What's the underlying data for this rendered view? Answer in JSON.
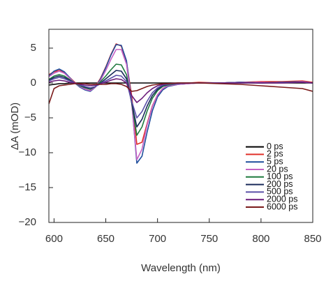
{
  "chart_data": {
    "type": "line",
    "xlabel": "Wavelength (nm)",
    "ylabel": "ΔA (mOD)",
    "x": [
      595,
      600,
      605,
      610,
      615,
      620,
      625,
      630,
      635,
      640,
      645,
      650,
      655,
      660,
      665,
      670,
      675,
      680,
      685,
      690,
      695,
      700,
      705,
      710,
      720,
      730,
      740,
      760,
      780,
      800,
      820,
      840,
      850
    ],
    "series": [
      {
        "name": "0 ps",
        "color": "#000000",
        "values": [
          -0.3,
          -0.2,
          -0.1,
          -0.1,
          0,
          0,
          0,
          0,
          0,
          0,
          0,
          0,
          0,
          0,
          0,
          0,
          0,
          0,
          0,
          0,
          0,
          0,
          0,
          0,
          0,
          0,
          0,
          0,
          0,
          0,
          0,
          0,
          0
        ]
      },
      {
        "name": "2 ps",
        "color": "#e0302a",
        "values": [
          1.2,
          1.6,
          1.8,
          1.5,
          0.8,
          0.1,
          -0.5,
          -0.9,
          -1.1,
          -0.5,
          0.7,
          2.3,
          4.1,
          5.6,
          5.3,
          3.0,
          -1.8,
          -8.8,
          -8.5,
          -5.8,
          -3.3,
          -1.7,
          -0.8,
          -0.4,
          -0.1,
          0,
          0.1,
          0,
          0.1,
          0.2,
          0.2,
          0.3,
          0.1
        ]
      },
      {
        "name": "5 ps",
        "color": "#1f4e9c",
        "values": [
          1.0,
          1.7,
          2.0,
          1.6,
          0.8,
          0,
          -0.6,
          -1.0,
          -1.2,
          -0.6,
          0.6,
          2.2,
          4.0,
          5.5,
          5.4,
          3.2,
          -2.5,
          -11.5,
          -10.5,
          -7.0,
          -4.0,
          -2.0,
          -1.0,
          -0.5,
          -0.2,
          -0.1,
          0,
          0,
          0.1,
          0,
          0.1,
          0.2,
          0
        ]
      },
      {
        "name": "20 ps",
        "color": "#c462c4",
        "values": [
          0.9,
          1.4,
          1.7,
          1.4,
          0.7,
          0,
          -0.5,
          -0.9,
          -1.1,
          -0.6,
          0.4,
          1.8,
          3.4,
          4.8,
          4.8,
          2.7,
          -2.8,
          -11.0,
          -9.5,
          -6.0,
          -3.4,
          -1.7,
          -0.8,
          -0.4,
          -0.2,
          -0.1,
          0,
          0,
          0.1,
          0.1,
          0,
          0.2,
          0
        ]
      },
      {
        "name": "100 ps",
        "color": "#1e7a3e",
        "values": [
          0.5,
          1.0,
          1.2,
          1.0,
          0.5,
          0,
          -0.4,
          -0.7,
          -0.9,
          -0.5,
          0.2,
          1.0,
          1.9,
          2.7,
          2.6,
          1.2,
          -2.8,
          -7.5,
          -6.3,
          -4.0,
          -2.2,
          -1.1,
          -0.5,
          -0.3,
          -0.1,
          0,
          0,
          0,
          0.1,
          0,
          0.1,
          0.1,
          0
        ]
      },
      {
        "name": "200 ps",
        "color": "#1a2a5a",
        "values": [
          0.4,
          0.8,
          1.0,
          0.8,
          0.4,
          0,
          -0.3,
          -0.6,
          -0.8,
          -0.5,
          0,
          0.6,
          1.2,
          1.8,
          1.7,
          0.6,
          -2.8,
          -6.3,
          -5.2,
          -3.3,
          -1.8,
          -0.9,
          -0.4,
          -0.2,
          -0.1,
          0,
          0,
          0,
          0.1,
          0,
          0.1,
          0.1,
          0
        ]
      },
      {
        "name": "500 ps",
        "color": "#5a50a8",
        "values": [
          0.3,
          0.6,
          0.8,
          0.6,
          0.3,
          0,
          -0.3,
          -0.5,
          -0.7,
          -0.5,
          -0.1,
          0.3,
          0.7,
          1.1,
          1.0,
          0.2,
          -2.6,
          -5.0,
          -4.1,
          -2.6,
          -1.4,
          -0.7,
          -0.3,
          -0.2,
          -0.1,
          0,
          0,
          0,
          0.1,
          0,
          0.1,
          0.1,
          0
        ]
      },
      {
        "name": "2000 ps",
        "color": "#6a1a7a",
        "values": [
          0.1,
          0.3,
          0.4,
          0.3,
          0.1,
          0,
          -0.2,
          -0.3,
          -0.4,
          -0.3,
          -0.1,
          0.1,
          0.4,
          0.6,
          0.5,
          0,
          -1.8,
          -2.8,
          -2.2,
          -1.4,
          -0.8,
          -0.4,
          -0.2,
          -0.1,
          0,
          0,
          0,
          0,
          0,
          0,
          0,
          0.1,
          0
        ]
      },
      {
        "name": "6000 ps",
        "color": "#7a1a1a",
        "values": [
          -3.0,
          -0.8,
          -0.4,
          -0.3,
          -0.2,
          -0.1,
          -0.1,
          -0.1,
          -0.2,
          -0.2,
          -0.2,
          -0.2,
          -0.1,
          -0.1,
          -0.2,
          -0.5,
          -1.2,
          -1.1,
          -0.8,
          -0.5,
          -0.3,
          -0.2,
          -0.1,
          -0.1,
          0,
          0,
          0,
          -0.1,
          -0.2,
          -0.4,
          -0.6,
          -0.8,
          -1.2
        ]
      }
    ],
    "xlim": [
      595,
      850
    ],
    "xticks": [
      600,
      650,
      700,
      750,
      800,
      850
    ],
    "ylim": [
      -20,
      7.7
    ],
    "yticks": [
      {
        "value": -20,
        "label": "−20"
      },
      {
        "value": -15,
        "label": "−15"
      },
      {
        "value": -10,
        "label": "−10"
      },
      {
        "value": -5,
        "label": "−5"
      },
      0,
      5
    ],
    "legend": "lower-right"
  }
}
